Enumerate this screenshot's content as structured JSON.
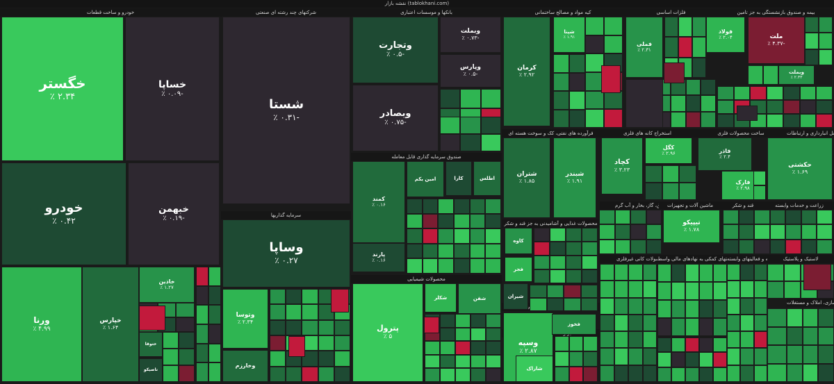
{
  "header": {
    "title": "نقشه بازار (tablokhani.com)"
  },
  "colors": {
    "dark": "#2e2830",
    "g1": "#1e4a33",
    "g2": "#216b3c",
    "g3": "#27934a",
    "g4": "#2fb552",
    "g5": "#39c95c",
    "red": "#c21a3c",
    "dred": "#7b1d32",
    "maroon": "#5a2533"
  },
  "sections": [
    {
      "label": "خودرو و ساخت قطعات"
    },
    {
      "label": "شرکتهای چند رشته ای صنعتی"
    },
    {
      "label": "بانکها و موسسات اعتباری"
    },
    {
      "label": "کیه مواد و مصالح ساختمانی"
    },
    {
      "label": "فلزات اساسی"
    },
    {
      "label": "بیمه و صندوق بازنشستگی به جز تامین"
    },
    {
      "label": "سرمایه گذاریها"
    },
    {
      "label": "صندوق سرمایه گذاری قابل معامله"
    },
    {
      "label": "فرآورده های نفتی، کک و سوخت هسته ای"
    },
    {
      "label": "استخراج کانه های فلزی"
    },
    {
      "label": "ساخت محصولات فلزی"
    },
    {
      "label": "حمل و نقل انبارداری و ارتباطات"
    },
    {
      "label": "محصولات شیمیایی"
    },
    {
      "label": "محصولات غذایی و آشامیدنی به جز قند و شکر"
    },
    {
      "label": "عرضه برق، گاز، بخار و آب گرم"
    },
    {
      "label": "ماشین آلات و تجهیزات"
    },
    {
      "label": "قند و شکر"
    },
    {
      "label": "زراعت و خدمات وابسته"
    },
    {
      "label": "مواد و محصولات دارویی"
    },
    {
      "label": "سایر واسطه گریهای مالی"
    },
    {
      "label": "سایر محصولات کانی غیرفلزی"
    },
    {
      "label": "فعالیتهای کمکی به نهادهای مالی واسط"
    },
    {
      "label": "رایانه و فعالیتهای وابسته"
    },
    {
      "label": "لاستیک و پلاستیک"
    },
    {
      "label": "انبوه سازی، املاک و مستغلات"
    }
  ],
  "tiles": [
    {
      "name": "خگستر",
      "pct": "٪ ۲.۳۴"
    },
    {
      "name": "خساپا",
      "pct": "٪ ۰.۰۹-"
    },
    {
      "name": "خودرو",
      "pct": "٪ ۰.۴۲"
    },
    {
      "name": "خبهمن",
      "pct": "٪ ۰.۱۹-"
    },
    {
      "name": "ورنا",
      "pct": "٪ ۴.۹۹"
    },
    {
      "name": "خپارس",
      "pct": "٪ ۱.۶۴"
    },
    {
      "name": "خاذین",
      "pct": "٪ ۱.۲۷"
    },
    {
      "name": "شستا",
      "pct": "٪ ۰.۳۱-"
    },
    {
      "name": "وساپا",
      "pct": "٪ ۰.۲۷"
    },
    {
      "name": "وتوسا",
      "pct": "٪ ۲.۳۴"
    },
    {
      "name": "وخارزم",
      "pct": ""
    },
    {
      "name": "وتجارت",
      "pct": "٪ ۰.۵-"
    },
    {
      "name": "وبصادر",
      "pct": "٪ ۰.۷۵-"
    },
    {
      "name": "وبملت",
      "pct": "٪ ۰.۷۳-"
    },
    {
      "name": "وپارس",
      "pct": "٪ ۰.۵-"
    },
    {
      "name": "کرمان",
      "pct": "٪ ۲.۹۲"
    },
    {
      "name": "شپنا",
      "pct": "٪ ۱.۹۱"
    },
    {
      "name": "شبندر",
      "pct": "٪ ۱.۹۱"
    },
    {
      "name": "شتران",
      "pct": "٪ ۱.۸۵"
    },
    {
      "name": "فملی",
      "pct": "٪ ۲.۳۱"
    },
    {
      "name": "فولاد",
      "pct": "٪ ۲.۰۴"
    },
    {
      "name": "ملت",
      "pct": "٪ ۴.۳۷-"
    },
    {
      "name": "وبملت",
      "pct": "٪ ۲.۳۳"
    },
    {
      "name": "کچاد",
      "pct": "٪ ۳.۲۳"
    },
    {
      "name": "کگل",
      "pct": "٪ ۲.۹۶"
    },
    {
      "name": "فاذر",
      "pct": "٪ ۲.۴"
    },
    {
      "name": "فارک",
      "pct": "٪ ۲.۹۸"
    },
    {
      "name": "حکشتی",
      "pct": "٪ ۱.۶۹"
    },
    {
      "name": "تیپیکو",
      "pct": "٪ ۱.۷۸"
    },
    {
      "name": "پترول",
      "pct": "٪ ۵"
    },
    {
      "name": "وسپه",
      "pct": "٪ ۲.۸۷"
    },
    {
      "name": "کمند",
      "pct": "٪ ۰.۱۶"
    },
    {
      "name": "پارند",
      "pct": "٪ ۰.۱۶"
    },
    {
      "name": "امین یکم",
      "pct": ""
    },
    {
      "name": "کارا",
      "pct": ""
    },
    {
      "name": "اطلس",
      "pct": ""
    },
    {
      "name": "شکلر",
      "pct": ""
    },
    {
      "name": "شفن",
      "pct": ""
    },
    {
      "name": "شیران",
      "pct": ""
    },
    {
      "name": "کاوه",
      "pct": ""
    },
    {
      "name": "فجر",
      "pct": ""
    },
    {
      "name": "شاراک",
      "pct": ""
    },
    {
      "name": "فخوز",
      "pct": ""
    },
    {
      "name": "ختوقا",
      "pct": ""
    },
    {
      "name": "تاصیکو",
      "pct": ""
    }
  ]
}
